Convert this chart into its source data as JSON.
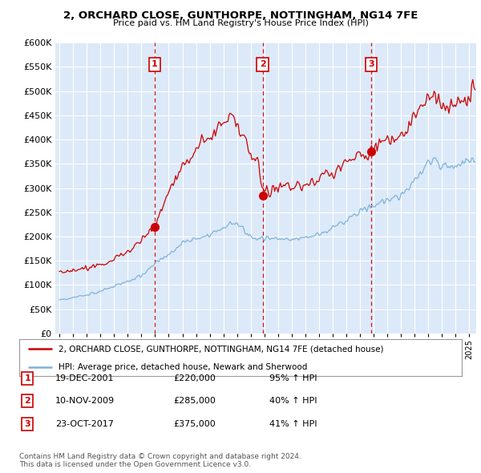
{
  "title": "2, ORCHARD CLOSE, GUNTHORPE, NOTTINGHAM, NG14 7FE",
  "subtitle": "Price paid vs. HM Land Registry's House Price Index (HPI)",
  "ylim": [
    0,
    600000
  ],
  "yticks": [
    0,
    50000,
    100000,
    150000,
    200000,
    250000,
    300000,
    350000,
    400000,
    450000,
    500000,
    550000,
    600000
  ],
  "ytick_labels": [
    "£0",
    "£50K",
    "£100K",
    "£150K",
    "£200K",
    "£250K",
    "£300K",
    "£350K",
    "£400K",
    "£450K",
    "£500K",
    "£550K",
    "£600K"
  ],
  "plot_bg_color": "#dce9f8",
  "red_color": "#cc0000",
  "blue_color": "#7fb3d9",
  "vline_color": "#cc0000",
  "grid_color": "#ffffff",
  "sale_dates": [
    2001.97,
    2009.87,
    2017.82
  ],
  "sale_prices": [
    220000,
    285000,
    375000
  ],
  "sale_labels": [
    "1",
    "2",
    "3"
  ],
  "legend_items": [
    {
      "label": "2, ORCHARD CLOSE, GUNTHORPE, NOTTINGHAM, NG14 7FE (detached house)",
      "color": "#cc0000"
    },
    {
      "label": "HPI: Average price, detached house, Newark and Sherwood",
      "color": "#7fb3d9"
    }
  ],
  "table_rows": [
    {
      "num": "1",
      "date": "19-DEC-2001",
      "price": "£220,000",
      "pct": "95% ↑ HPI"
    },
    {
      "num": "2",
      "date": "10-NOV-2009",
      "price": "£285,000",
      "pct": "40% ↑ HPI"
    },
    {
      "num": "3",
      "date": "23-OCT-2017",
      "price": "£375,000",
      "pct": "41% ↑ HPI"
    }
  ],
  "footer": "Contains HM Land Registry data © Crown copyright and database right 2024.\nThis data is licensed under the Open Government Licence v3.0.",
  "xmin": 1994.7,
  "xmax": 2025.5
}
